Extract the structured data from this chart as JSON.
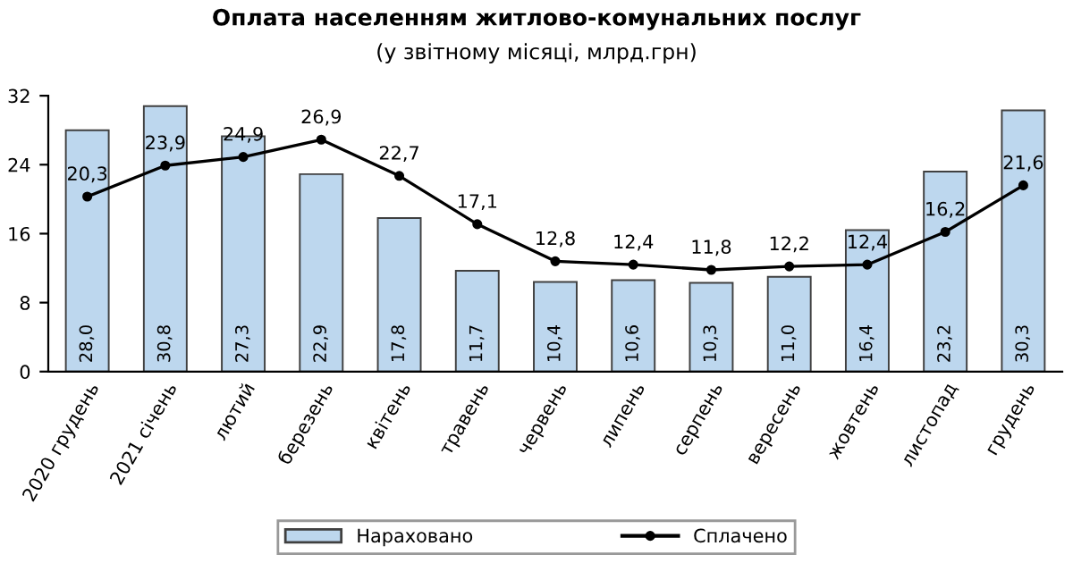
{
  "chart_data": {
    "type": "bar",
    "title": "Оплата населенням житлово-комунальних послуг",
    "subtitle": "(у звітному місяці, млрд.грн)",
    "categories": [
      "2020 грудень",
      "2021 січень",
      "лютий",
      "березень",
      "квітень",
      "травень",
      "червень",
      "липень",
      "серпень",
      "вересень",
      "жовтень",
      "листопад",
      "грудень"
    ],
    "series": [
      {
        "name": "Нараховано",
        "color": "#bdd7ee",
        "values": [
          28.0,
          30.8,
          27.3,
          22.9,
          17.8,
          11.7,
          10.4,
          10.6,
          10.3,
          11.0,
          16.4,
          23.2,
          30.3
        ],
        "value_labels": [
          "28,0",
          "30,8",
          "27,3",
          "22,9",
          "17,8",
          "11,7",
          "10,4",
          "10,6",
          "10,3",
          "11,0",
          "16,4",
          "23,2",
          "30,3"
        ]
      },
      {
        "name": "Сплачено",
        "type": "line",
        "color": "#000000",
        "values": [
          20.3,
          23.9,
          24.9,
          26.9,
          22.7,
          17.1,
          12.8,
          12.4,
          11.8,
          12.2,
          12.4,
          16.2,
          21.6
        ],
        "value_labels": [
          "20,3",
          "23,9",
          "24,9",
          "26,9",
          "22,7",
          "17,1",
          "12,8",
          "12,4",
          "11,8",
          "12,2",
          "12,4",
          "16,2",
          "21,6"
        ]
      }
    ],
    "ylim": [
      0,
      32
    ],
    "yticks": [
      0,
      8,
      16,
      24,
      32
    ],
    "grid": false,
    "legend": "bottom",
    "marker": "circle",
    "line_style": "solid"
  }
}
